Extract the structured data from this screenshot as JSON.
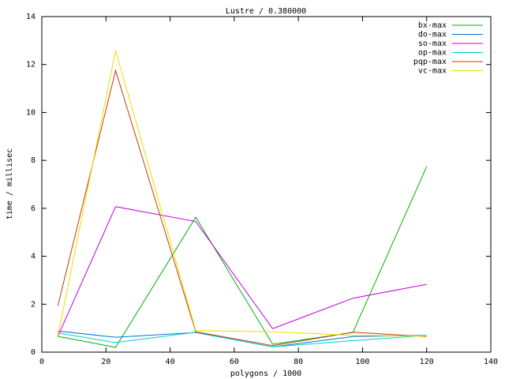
{
  "chart_data": {
    "type": "line",
    "title": "Lustre / 0.380000",
    "x_label": "polygons / 1000",
    "y_label": "time / millisec",
    "x": [
      5,
      23,
      48,
      72,
      97,
      120
    ],
    "series": [
      {
        "name": "bx-max",
        "color": "#00b000",
        "values": [
          0.66,
          0.2,
          5.63,
          0.33,
          0.82,
          7.74
        ]
      },
      {
        "name": "do-max",
        "color": "#0070e0",
        "values": [
          0.88,
          0.62,
          0.82,
          0.22,
          0.65,
          0.7
        ]
      },
      {
        "name": "so-max",
        "color": "#c000e0",
        "values": [
          0.66,
          6.07,
          5.45,
          0.98,
          2.25,
          2.83
        ]
      },
      {
        "name": "op-max",
        "color": "#00d0d0",
        "values": [
          0.8,
          0.4,
          0.83,
          0.22,
          0.48,
          0.7
        ]
      },
      {
        "name": "pqp-max",
        "color": "#c04000",
        "values": [
          1.93,
          11.75,
          0.85,
          0.27,
          0.83,
          0.65
        ]
      },
      {
        "name": "vc-max",
        "color": "#e8e000",
        "values": [
          0.68,
          12.58,
          0.9,
          0.85,
          0.7,
          0.67
        ]
      }
    ],
    "xlim": [
      0,
      140
    ],
    "xticks": [
      0,
      20,
      40,
      60,
      80,
      100,
      120,
      140
    ],
    "ylim": [
      0,
      14
    ],
    "yticks": [
      0,
      2,
      4,
      6,
      8,
      10,
      12,
      14
    ],
    "legend": "top-right"
  }
}
